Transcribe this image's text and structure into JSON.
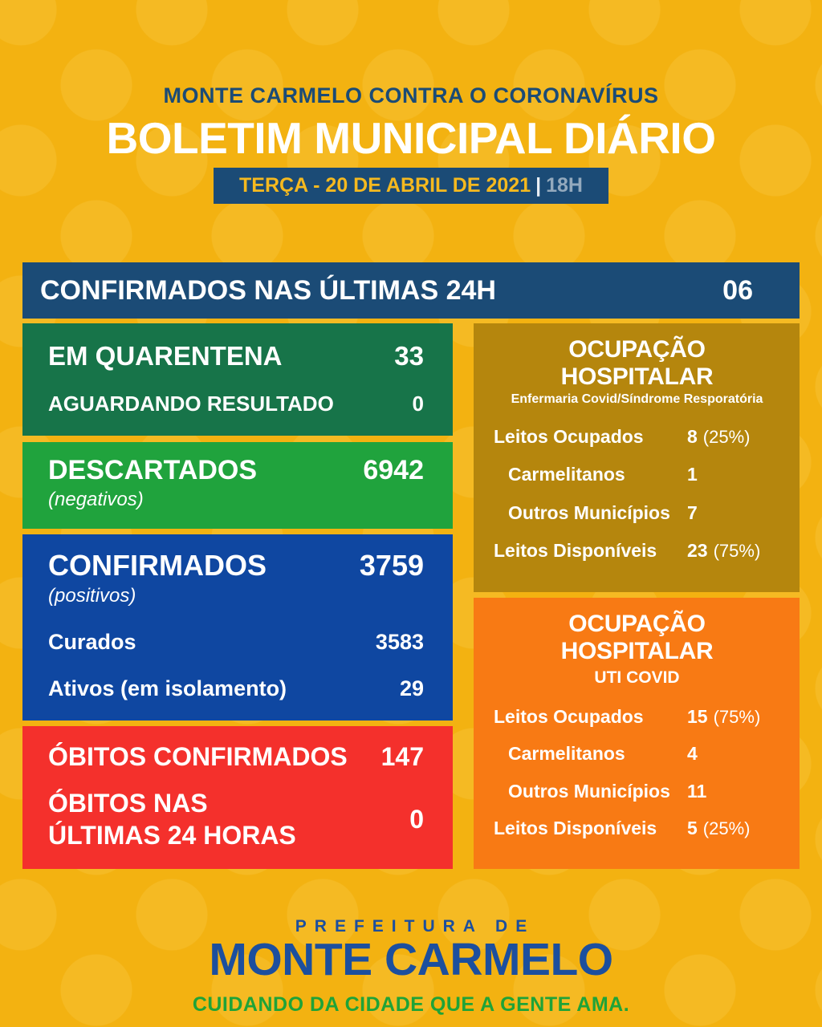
{
  "header": {
    "kicker": "MONTE CARMELO CONTRA O CORONAVÍRUS",
    "title": "BOLETIM MUNICIPAL DIÁRIO",
    "badge": {
      "date": "TERÇA - 20 DE ABRIL DE 2021",
      "separator": "|",
      "time": "18H"
    }
  },
  "summary_bar": {
    "label": "CONFIRMADOS NAS ÚLTIMAS 24H",
    "value": "06"
  },
  "stats": {
    "quarantine": {
      "rows": [
        {
          "label": "EM QUARENTENA",
          "value": "33"
        },
        {
          "label": "AGUARDANDO RESULTADO",
          "value": "0"
        }
      ]
    },
    "discarded": {
      "label": "DESCARTADOS",
      "note": "(negativos)",
      "value": "6942"
    },
    "confirmed": {
      "label": "CONFIRMADOS",
      "note": "(positivos)",
      "value": "3759",
      "rows": [
        {
          "label": "Curados",
          "value": "3583"
        },
        {
          "label": "Ativos (em isolamento)",
          "value": "29"
        }
      ]
    },
    "deaths": {
      "rows": [
        {
          "label": "ÓBITOS CONFIRMADOS",
          "value": "147"
        },
        {
          "label": "ÓBITOS NAS ÚLTIMAS 24 HORAS",
          "value": "0"
        }
      ]
    }
  },
  "hospital": {
    "ward": {
      "title": "OCUPAÇÃO HOSPITALAR",
      "subtitle": "Enfermaria Covid/Síndrome Resporatória",
      "rows": [
        {
          "label": "Leitos Ocupados",
          "value": "8",
          "pct": "(25%)"
        },
        {
          "label": "Carmelitanos",
          "value": "1",
          "pct": ""
        },
        {
          "label": "Outros Municípios",
          "value": "7",
          "pct": ""
        },
        {
          "label": "Leitos Disponíveis",
          "value": "23",
          "pct": "(75%)"
        }
      ]
    },
    "icu": {
      "title": "OCUPAÇÃO HOSPITALAR",
      "subtitle": "UTI COVID",
      "rows": [
        {
          "label": "Leitos Ocupados",
          "value": "15",
          "pct": "(75%)"
        },
        {
          "label": "Carmelitanos",
          "value": "4",
          "pct": ""
        },
        {
          "label": "Outros Municípios",
          "value": "11",
          "pct": ""
        },
        {
          "label": "Leitos Disponíveis",
          "value": "5",
          "pct": "(25%)"
        }
      ]
    }
  },
  "footer": {
    "kicker": "PREFEITURA DE",
    "title": "MONTE CARMELO",
    "tagline": "CUIDANDO DA CIDADE QUE A GENTE AMA."
  },
  "colors": {
    "background": "#F3B211",
    "navy": "#1B4B76",
    "dark_green": "#177449",
    "green": "#20A33D",
    "royal_blue": "#0F47A1",
    "red": "#F4302C",
    "olive": "#B5860D",
    "orange": "#F87A14",
    "footer_blue": "#1C4F9E",
    "footer_green": "#1FA338",
    "badge_text_yellow": "#F5B91F",
    "badge_time_gray": "#93A9BD"
  }
}
